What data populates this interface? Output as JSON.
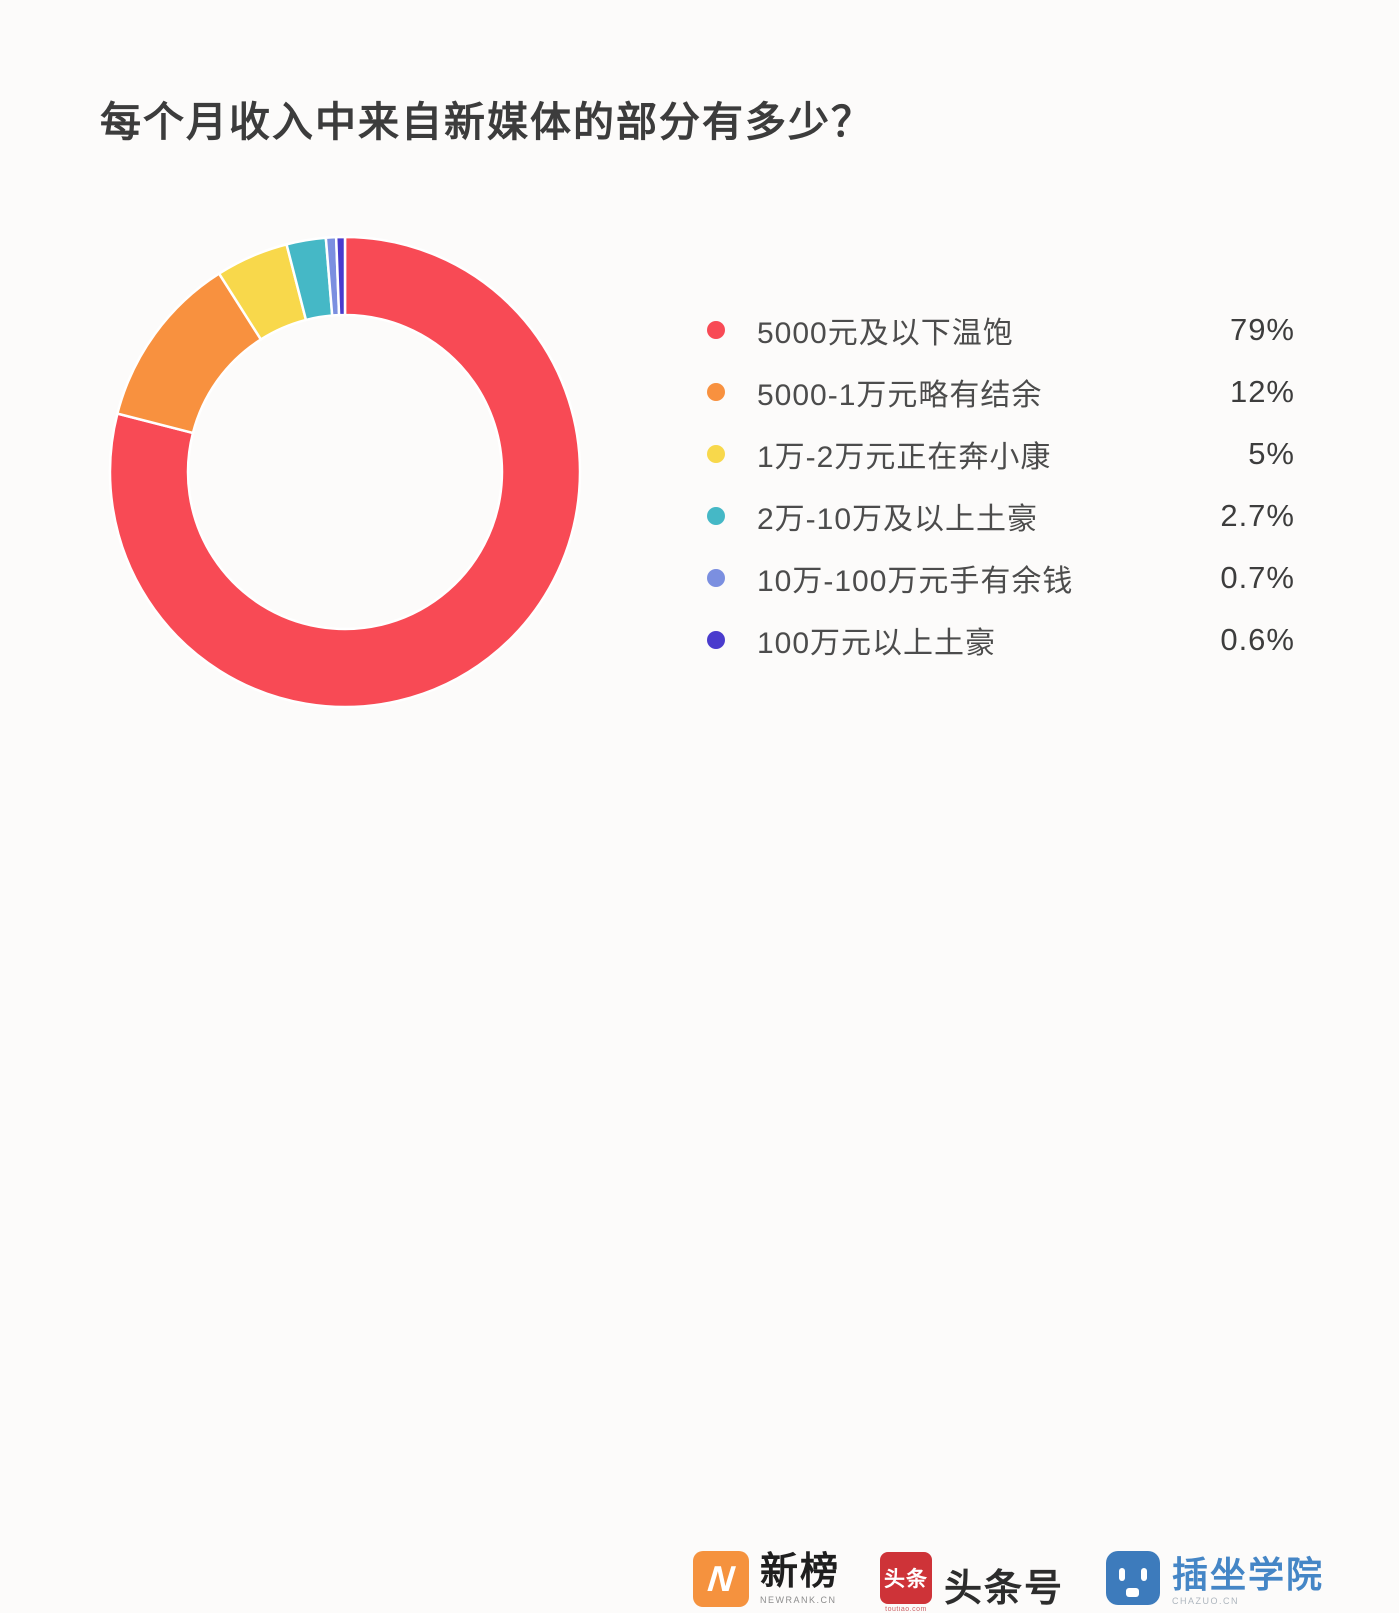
{
  "title": "每个月收入中来自新媒体的部分有多少？",
  "chart_data": {
    "type": "pie",
    "variant": "donut",
    "title": "每个月收入中来自新媒体的部分有多少？",
    "categories": [
      "5000元及以下温饱",
      "5000-1万元略有结余",
      "1万-2万元正在奔小康",
      "2万-10万及以上土豪",
      "10万-100万元手有余钱",
      "100万元以上土豪"
    ],
    "values": [
      79,
      12,
      5,
      2.7,
      0.7,
      0.6
    ],
    "value_labels": [
      "79%",
      "12%",
      "5%",
      "2.7%",
      "0.7%",
      "0.6%"
    ],
    "colors": [
      "#F84A55",
      "#F8913F",
      "#F8D84B",
      "#45B8C6",
      "#7B8FE0",
      "#4A3CCD"
    ],
    "start_angle_deg": 0,
    "direction": "clockwise",
    "inner_radius_ratio": 0.668,
    "segment_gap_color": "#FFFFFF",
    "legend_position": "right"
  },
  "legend": {
    "items": [
      {
        "label": "5000元及以下温饱",
        "value": "79%",
        "color": "#F84A55"
      },
      {
        "label": "5000-1万元略有结余",
        "value": "12%",
        "color": "#F8913F"
      },
      {
        "label": "1万-2万元正在奔小康",
        "value": "5%",
        "color": "#F8D84B"
      },
      {
        "label": "2万-10万及以上土豪",
        "value": "2.7%",
        "color": "#45B8C6"
      },
      {
        "label": "10万-100万元手有余钱",
        "value": "0.7%",
        "color": "#7B8FE0"
      },
      {
        "label": "100万元以上土豪",
        "value": "0.6%",
        "color": "#4A3CCD"
      }
    ]
  },
  "footer": {
    "logos": [
      {
        "name": "newrank",
        "icon_letter": "N",
        "icon_color": "#F5923E",
        "text": "新榜",
        "subtext": "NEWRANK.CN"
      },
      {
        "name": "toutiao",
        "badge_text": "头条",
        "badge_color": "#CE3338",
        "text": "头条号",
        "subtext": "toutiao.com"
      },
      {
        "name": "chazuo",
        "icon_color": "#3D7BBC",
        "text": "插坐学院",
        "subtext": "CHAZUO.CN",
        "text_color": "#4586C6"
      }
    ]
  }
}
